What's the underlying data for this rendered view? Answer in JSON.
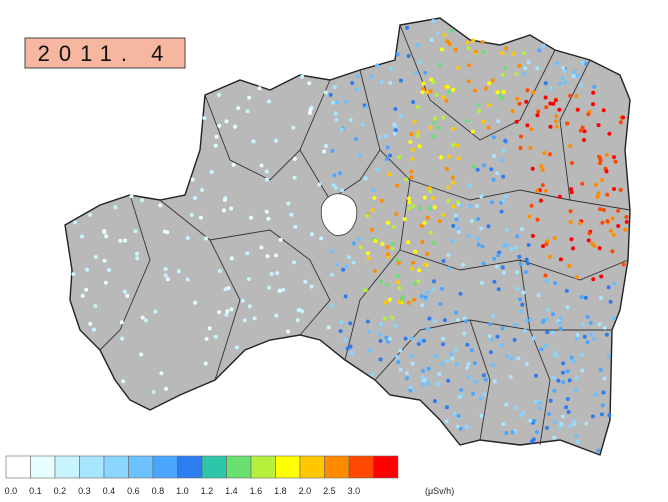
{
  "title": "2011. 4",
  "legend": {
    "colors": [
      "#ffffff",
      "#e6ffff",
      "#c8f4ff",
      "#a8e6ff",
      "#8ad6ff",
      "#6cc2ff",
      "#4aa6ff",
      "#2f7cf0",
      "#2ec6a8",
      "#6ae070",
      "#b6f03c",
      "#ffff00",
      "#ffc800",
      "#ff8c00",
      "#ff4800",
      "#ff0000"
    ],
    "labels": [
      "0.0",
      "0.1",
      "0.2",
      "0.3",
      "0.4",
      "0.6",
      "0.8",
      "1.0",
      "1.2",
      "1.4",
      "1.6",
      "1.8",
      "2.0",
      "2.5",
      "3.0"
    ],
    "unit": "(μSv/h)"
  }
}
